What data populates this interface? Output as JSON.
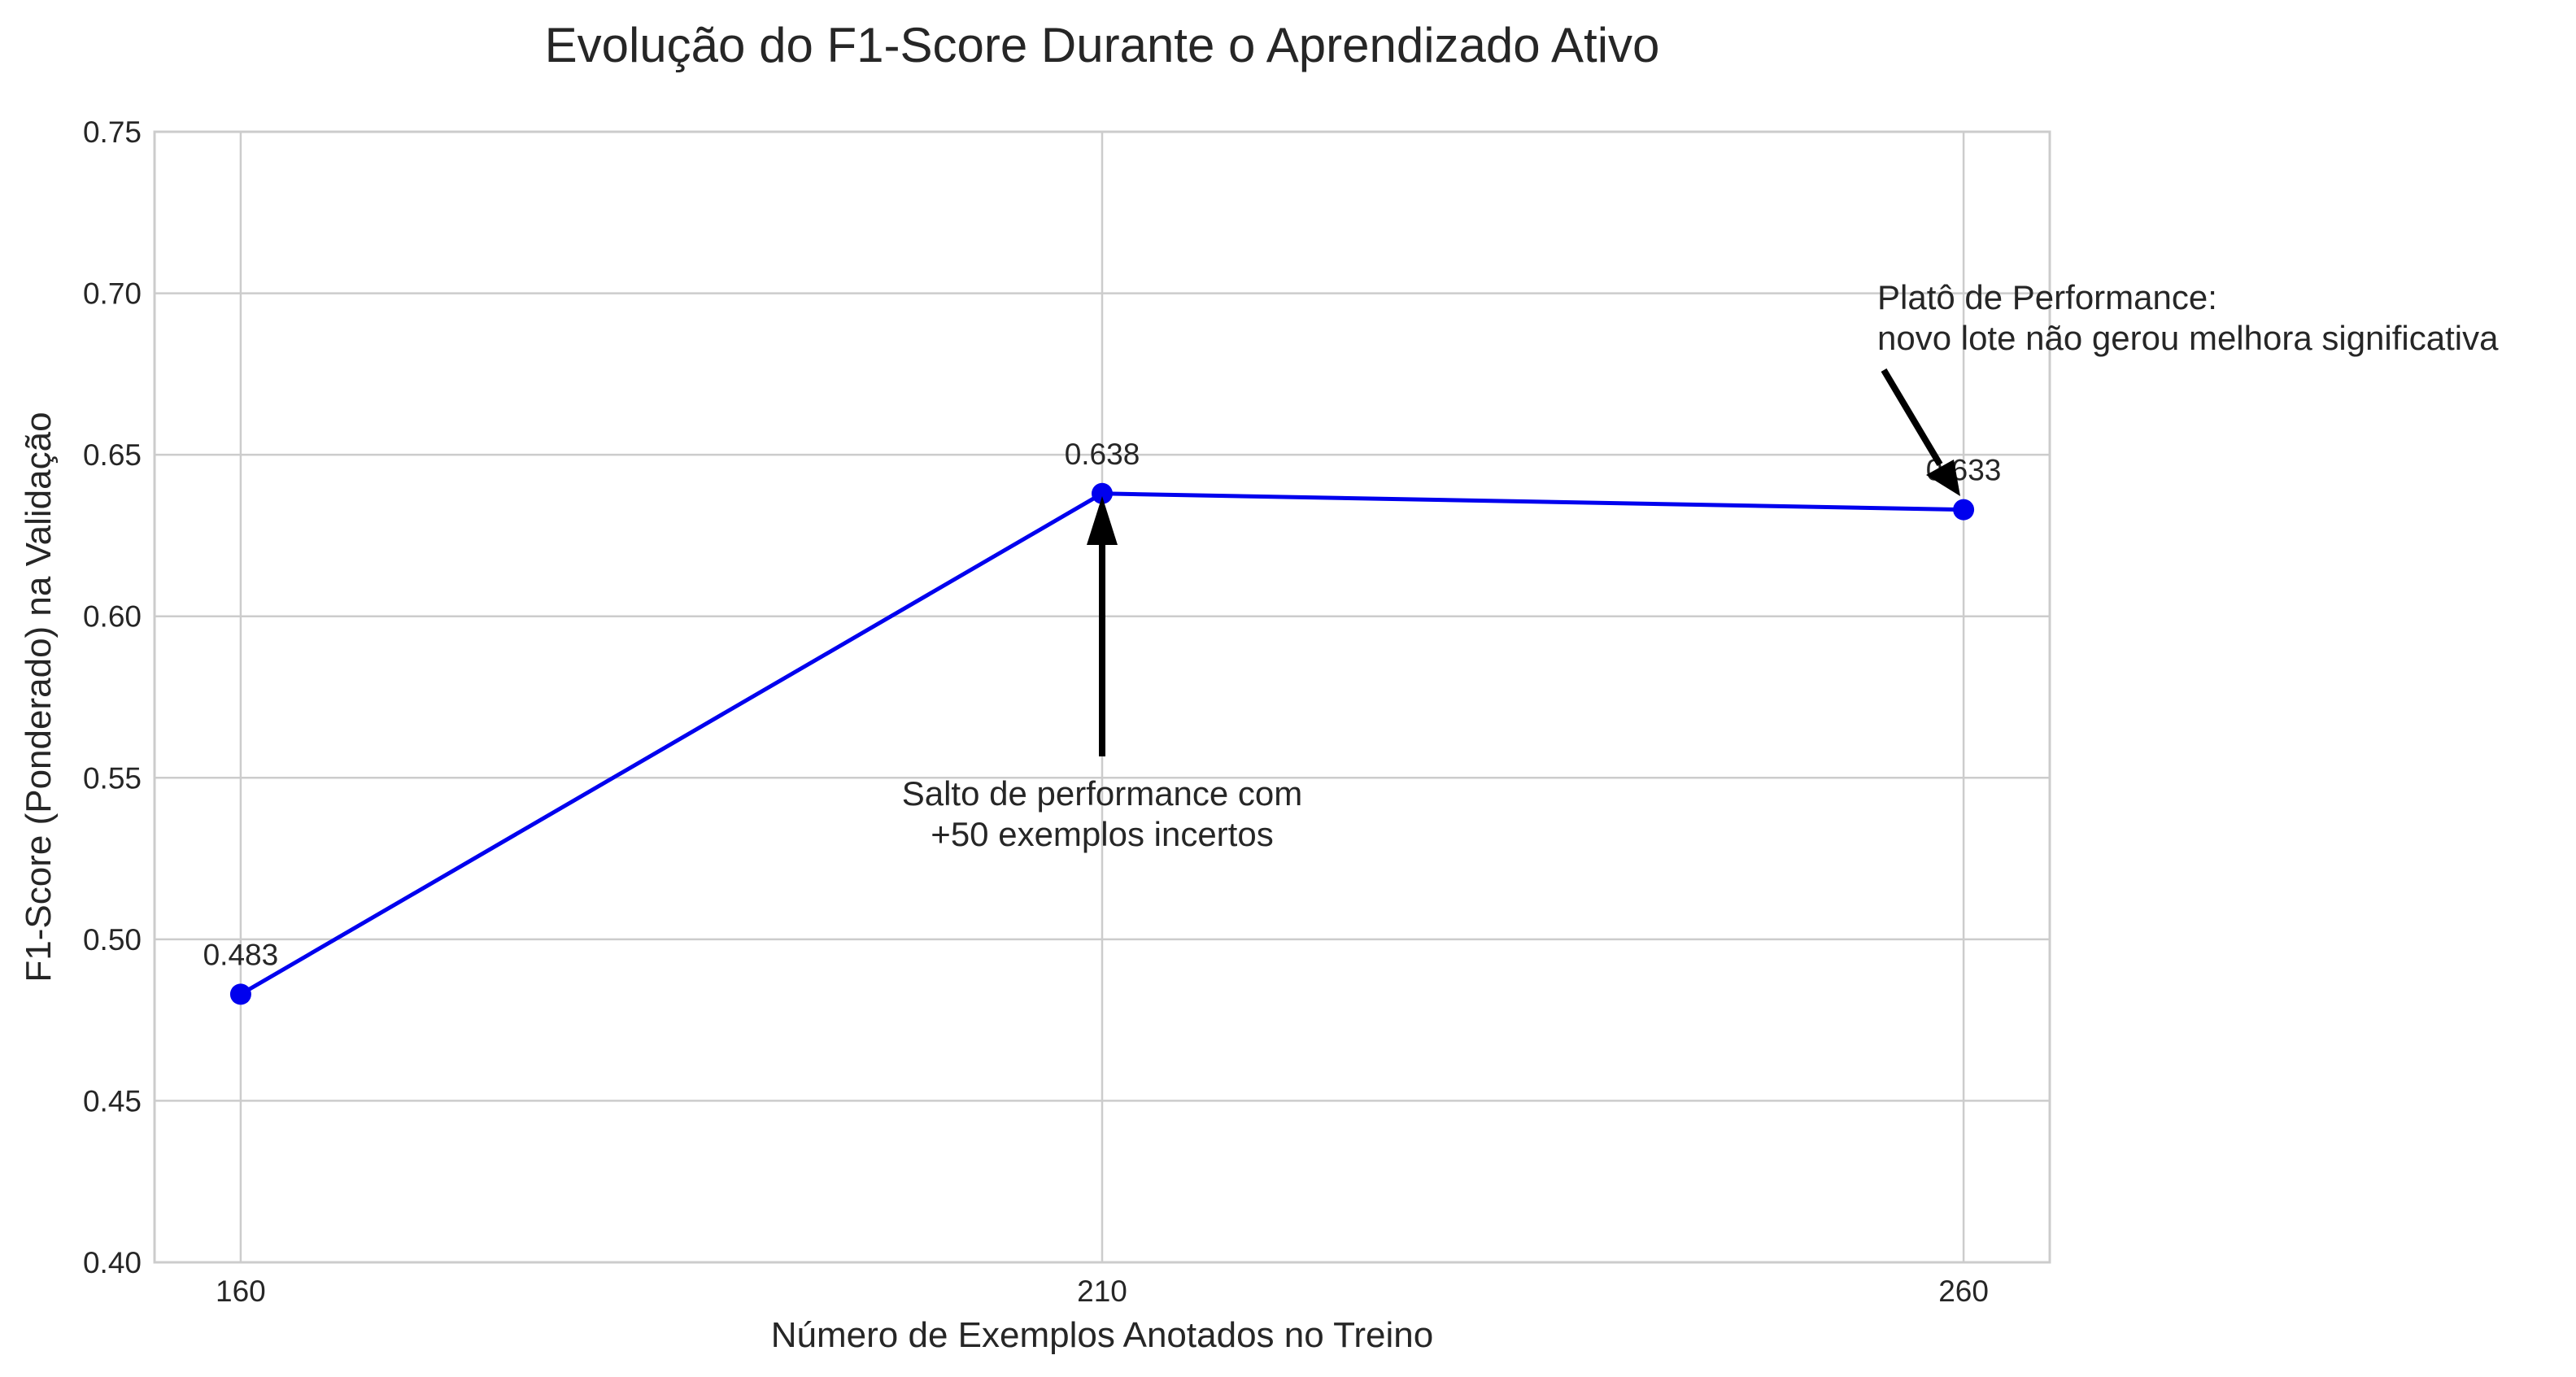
{
  "chart_data": {
    "type": "line",
    "title": "Evolução do F1-Score Durante o Aprendizado Ativo",
    "xlabel": "Número de Exemplos Anotados no Treino",
    "ylabel": "F1-Score (Ponderado) na Validação",
    "x": [
      160,
      210,
      260
    ],
    "x_tick_labels": [
      "160",
      "210",
      "260"
    ],
    "series": [
      {
        "values": [
          0.483,
          0.638,
          0.633
        ],
        "color": "#0000ee"
      }
    ],
    "data_labels": [
      "0.483",
      "0.638",
      "0.633"
    ],
    "y_ticks": [
      0.4,
      0.45,
      0.5,
      0.55,
      0.6,
      0.65,
      0.7,
      0.75
    ],
    "y_tick_labels": [
      "0.40",
      "0.45",
      "0.50",
      "0.55",
      "0.60",
      "0.65",
      "0.70",
      "0.75"
    ],
    "ylim": [
      0.4,
      0.75
    ],
    "xlim": [
      155,
      265
    ],
    "grid": true,
    "annotations": [
      {
        "lines": [
          "Salto de performance com",
          "+50 exemplos incertos"
        ],
        "x": 210,
        "y": 0.638
      },
      {
        "lines": [
          "Platô de Performance:",
          "novo lote não gerou melhora significativa"
        ],
        "x": 260,
        "y": 0.633
      }
    ]
  }
}
